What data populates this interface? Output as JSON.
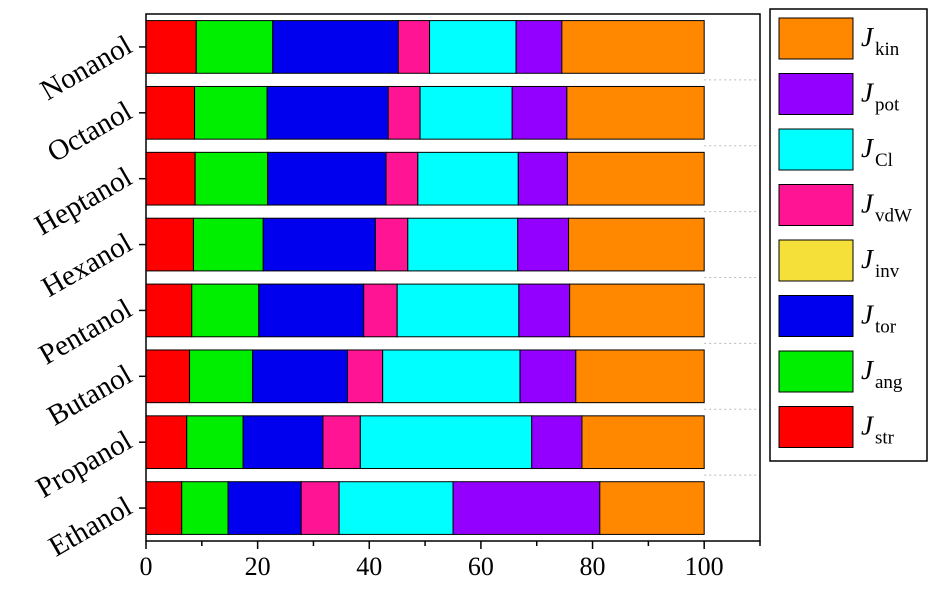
{
  "chart_data": {
    "type": "bar",
    "orientation": "horizontal",
    "stacked": true,
    "title": "",
    "xlabel": "",
    "ylabel": "",
    "xlim": [
      0,
      110
    ],
    "x_ticks": [
      0,
      20,
      40,
      60,
      80,
      100
    ],
    "grid": false,
    "legend_position": "right",
    "categories": [
      "Nonanol",
      "Octanol",
      "Heptanol",
      "Hexanol",
      "Pentanol",
      "Butanol",
      "Propanol",
      "Ethanol"
    ],
    "series": [
      {
        "name": "J",
        "subscript": "str",
        "color": "#ff0000",
        "values": [
          9.0,
          8.7,
          8.8,
          8.5,
          8.2,
          7.8,
          7.3,
          6.4
        ]
      },
      {
        "name": "J",
        "subscript": "ang",
        "color": "#00ee00",
        "values": [
          13.7,
          13.0,
          13.0,
          12.5,
          12.0,
          11.3,
          10.1,
          8.3
        ]
      },
      {
        "name": "J",
        "subscript": "tor",
        "color": "#0000ee",
        "values": [
          22.5,
          21.7,
          21.2,
          20.1,
          18.8,
          17.0,
          14.3,
          13.1
        ]
      },
      {
        "name": "J",
        "subscript": "vdW",
        "color": "#ff1493",
        "values": [
          5.6,
          5.7,
          5.7,
          5.8,
          6.0,
          6.3,
          6.7,
          6.8
        ]
      },
      {
        "name": "J",
        "subscript": "inv",
        "color": "#f5e03a",
        "values": [
          0,
          0,
          0,
          0,
          0,
          0,
          0,
          0
        ]
      },
      {
        "name": "J",
        "subscript": "Cl",
        "color": "#00ffff",
        "values": [
          15.5,
          16.5,
          18.0,
          19.7,
          21.8,
          24.6,
          30.7,
          20.4
        ]
      },
      {
        "name": "J",
        "subscript": "pot",
        "color": "#9400ff",
        "values": [
          8.2,
          9.8,
          8.8,
          9.1,
          9.1,
          10.0,
          9.0,
          26.3
        ]
      },
      {
        "name": "J",
        "subscript": "kin",
        "color": "#ff8800",
        "values": [
          25.5,
          24.6,
          24.5,
          24.3,
          24.1,
          23.0,
          21.9,
          18.7
        ]
      }
    ],
    "legend_order": [
      "kin",
      "pot",
      "Cl",
      "vdW",
      "inv",
      "tor",
      "ang",
      "str"
    ]
  }
}
